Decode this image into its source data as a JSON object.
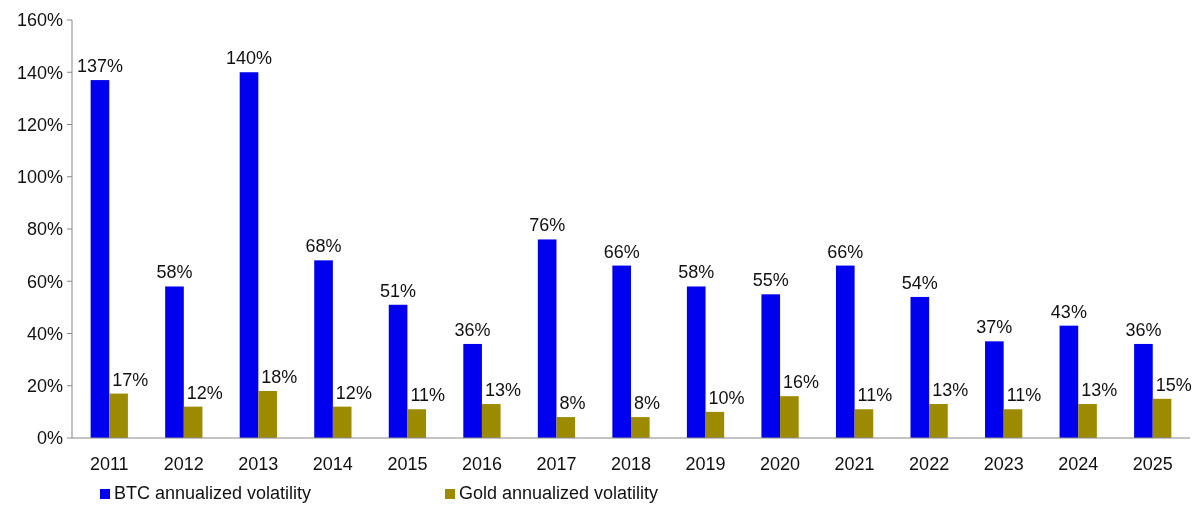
{
  "chart_data": {
    "type": "bar",
    "categories": [
      "2011",
      "2012",
      "2013",
      "2014",
      "2015",
      "2016",
      "2017",
      "2018",
      "2019",
      "2020",
      "2021",
      "2022",
      "2023",
      "2024",
      "2025"
    ],
    "series": [
      {
        "name": "BTC annualized volatility",
        "color": "#0000ee",
        "values": [
          137,
          58,
          140,
          68,
          51,
          36,
          76,
          66,
          58,
          55,
          66,
          54,
          37,
          43,
          36
        ],
        "value_labels": [
          "137%",
          "58%",
          "140%",
          "68%",
          "51%",
          "36%",
          "76%",
          "66%",
          "58%",
          "55%",
          "66%",
          "54%",
          "37%",
          "43%",
          "36%"
        ]
      },
      {
        "name": "Gold annualized volatility",
        "color": "#9c8a00",
        "values": [
          17,
          12,
          18,
          12,
          11,
          13,
          8,
          8,
          10,
          16,
          11,
          13,
          11,
          13,
          15
        ],
        "value_labels": [
          "17%",
          "12%",
          "18%",
          "12%",
          "11%",
          "13%",
          "8%",
          "8%",
          "10%",
          "16%",
          "11%",
          "13%",
          "11%",
          "13%",
          "15%"
        ]
      }
    ],
    "ylim": [
      0,
      160
    ],
    "yticks": [
      {
        "value": 0,
        "label": "0%"
      },
      {
        "value": 20,
        "label": "20%"
      },
      {
        "value": 40,
        "label": "40%"
      },
      {
        "value": 60,
        "label": "60%"
      },
      {
        "value": 80,
        "label": "80%"
      },
      {
        "value": 100,
        "label": "100%"
      },
      {
        "value": 120,
        "label": "120%"
      },
      {
        "value": 140,
        "label": "140%"
      },
      {
        "value": 160,
        "label": "160%"
      }
    ],
    "grid": false,
    "legend": "bottom"
  }
}
